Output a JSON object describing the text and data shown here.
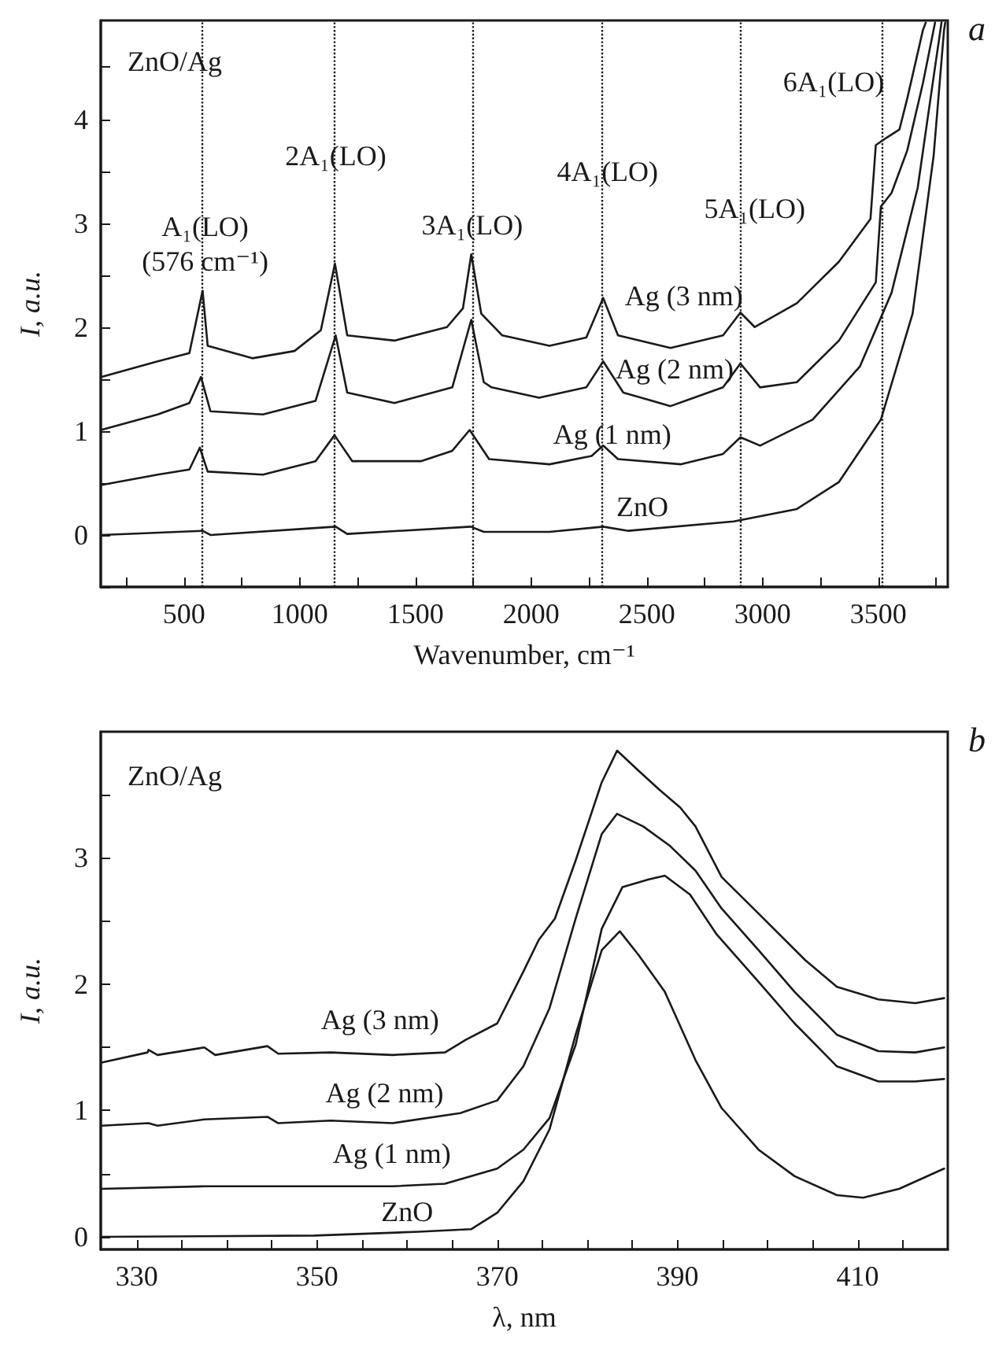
{
  "chart_data": [
    {
      "type": "line",
      "title": "ZnO/Ag",
      "xlabel": "Wavenumber, cm⁻¹",
      "ylabel": "I, a.u.",
      "xlim": [
        140,
        3800
      ],
      "ylim": [
        -0.5,
        4.95
      ],
      "xticks": [
        {
          "value": 250,
          "label": null
        },
        500,
        {
          "value": 750,
          "label": null
        },
        1000,
        {
          "value": 1250,
          "label": null
        },
        1500,
        {
          "value": 1750,
          "label": null
        },
        2000,
        {
          "value": 2250,
          "label": null
        },
        2500,
        {
          "value": 2750,
          "label": null
        },
        3000,
        {
          "value": 3250,
          "label": null
        },
        3500,
        {
          "value": 3750,
          "label": null
        }
      ],
      "yticks": [
        {
          "value": -0.5,
          "label": null
        },
        0,
        {
          "value": 0.5,
          "label": null
        },
        1,
        {
          "value": 1.5,
          "label": null
        },
        2,
        {
          "value": 2.5,
          "label": null
        },
        3,
        {
          "value": 3.5,
          "label": null
        },
        4,
        {
          "value": 4.5,
          "label": null
        }
      ],
      "grid": false,
      "legend": false,
      "marker": "none",
      "line_style": "solid",
      "series": [
        {
          "name": "Ag (3 nm)",
          "color": "#1a1a1a",
          "x": [
            141,
            386,
            523,
            580,
            602,
            795,
            977,
            1091,
            1152,
            1205,
            1409,
            1636,
            1705,
            1741,
            1784,
            1875,
            2079,
            2238,
            2311,
            2375,
            2602,
            2829,
            2904,
            2966,
            3148,
            3330,
            3466,
            3489,
            3534,
            3591,
            3625,
            3693,
            3705
          ],
          "values": [
            1.52,
            1.67,
            1.75,
            2.35,
            1.82,
            1.7,
            1.77,
            1.97,
            2.61,
            1.92,
            1.87,
            2.0,
            2.18,
            2.7,
            2.13,
            1.92,
            1.82,
            1.9,
            2.28,
            1.92,
            1.8,
            1.92,
            2.14,
            2.0,
            2.23,
            2.63,
            3.04,
            3.75,
            3.82,
            3.9,
            4.2,
            4.86,
            4.93
          ]
        },
        {
          "name": "Ag (2 nm)",
          "color": "#1a1a1a",
          "x": [
            141,
            386,
            523,
            573,
            614,
            841,
            1068,
            1155,
            1205,
            1409,
            1659,
            1741,
            1795,
            1829,
            2034,
            2238,
            2311,
            2398,
            2602,
            2829,
            2904,
            2989,
            3148,
            3330,
            3489,
            3511,
            3557,
            3625,
            3693,
            3745
          ],
          "values": [
            1.01,
            1.16,
            1.27,
            1.52,
            1.19,
            1.16,
            1.29,
            1.92,
            1.37,
            1.27,
            1.42,
            2.07,
            1.47,
            1.42,
            1.32,
            1.42,
            1.67,
            1.37,
            1.24,
            1.42,
            1.65,
            1.42,
            1.47,
            1.87,
            2.43,
            3.16,
            3.29,
            3.7,
            4.35,
            4.93
          ]
        },
        {
          "name": "Ag (1 nm)",
          "color": "#1a1a1a",
          "x": [
            141,
            386,
            523,
            568,
            602,
            841,
            1068,
            1150,
            1227,
            1523,
            1659,
            1734,
            1818,
            2079,
            2261,
            2311,
            2375,
            2648,
            2829,
            2904,
            2989,
            3216,
            3420,
            3557,
            3670,
            3739,
            3773
          ],
          "values": [
            0.48,
            0.58,
            0.63,
            0.84,
            0.61,
            0.58,
            0.71,
            0.96,
            0.71,
            0.71,
            0.81,
            1.01,
            0.73,
            0.68,
            0.76,
            0.86,
            0.73,
            0.68,
            0.78,
            0.94,
            0.86,
            1.11,
            1.62,
            2.33,
            3.34,
            4.41,
            4.93
          ]
        },
        {
          "name": "ZnO",
          "color": "#1a1a1a",
          "x": [
            141,
            580,
            614,
            1155,
            1205,
            1739,
            1795,
            2079,
            2311,
            2420,
            2875,
            3148,
            3330,
            3511,
            3648,
            3739,
            3784,
            3789
          ],
          "values": [
            0.0,
            0.04,
            0.0,
            0.08,
            0.01,
            0.08,
            0.03,
            0.03,
            0.08,
            0.04,
            0.13,
            0.25,
            0.51,
            1.11,
            2.13,
            3.65,
            4.86,
            4.93
          ]
        }
      ],
      "ref_lines": [
        {
          "axis": "x",
          "value": 576,
          "color": "#1a1a1a",
          "line_style": "dotted",
          "label": "A₁(LO)\n(576 cm⁻¹)"
        },
        {
          "axis": "x",
          "value": 1150,
          "color": "#1a1a1a",
          "line_style": "dotted",
          "label": "2A₁(LO)"
        },
        {
          "axis": "x",
          "value": 1745,
          "color": "#1a1a1a",
          "line_style": "dotted",
          "label": "3A₁(LO)"
        },
        {
          "axis": "x",
          "value": 2307,
          "color": "#1a1a1a",
          "line_style": "dotted",
          "label": "4A₁(LO)"
        },
        {
          "axis": "x",
          "value": 2904,
          "color": "#1a1a1a",
          "line_style": "dotted",
          "label": "5A₁(LO)"
        },
        {
          "axis": "x",
          "value": 3516,
          "color": "#1a1a1a",
          "line_style": "dotted",
          "label": "6A₁(LO)"
        }
      ],
      "annotations": [
        "a"
      ]
    },
    {
      "type": "line",
      "title": "ZnO/Ag",
      "xlabel": "λ, nm",
      "ylabel": "I, a.u.",
      "xlim": [
        326,
        420
      ],
      "ylim": [
        -0.1,
        4
      ],
      "xticks": [
        330,
        {
          "value": 335,
          "label": null
        },
        {
          "value": 340,
          "label": null
        },
        {
          "value": 345,
          "label": null
        },
        350,
        {
          "value": 355,
          "label": null
        },
        {
          "value": 360,
          "label": null
        },
        {
          "value": 365,
          "label": null
        },
        370,
        {
          "value": 375,
          "label": null
        },
        {
          "value": 380,
          "label": null
        },
        {
          "value": 385,
          "label": null
        },
        390,
        {
          "value": 395,
          "label": null
        },
        {
          "value": 400,
          "label": null
        },
        {
          "value": 405,
          "label": null
        },
        410,
        {
          "value": 415,
          "label": null
        }
      ],
      "yticks": [
        0,
        {
          "value": 0.5,
          "label": null
        },
        1,
        {
          "value": 1.5,
          "label": null
        },
        2,
        {
          "value": 2.5,
          "label": null
        },
        3,
        {
          "value": 3.5,
          "label": null
        }
      ],
      "grid": false,
      "legend": false,
      "marker": "none",
      "line_style": "solid",
      "series": [
        {
          "name": "Ag (3 nm)",
          "color": "#1a1a1a",
          "x": [
            326.1,
            331.2,
            331.3,
            332.3,
            337.5,
            338.7,
            344.5,
            345.7,
            351.5,
            358.4,
            364.2,
            366.5,
            370,
            372.9,
            374.6,
            376.4,
            378.7,
            381.6,
            383.3,
            385.7,
            388.0,
            390.3,
            392.0,
            394.9,
            399,
            404.2,
            407.7,
            412.3,
            416.4,
            419.6
          ],
          "values": [
            1.38,
            1.46,
            1.48,
            1.44,
            1.5,
            1.44,
            1.51,
            1.45,
            1.46,
            1.44,
            1.46,
            1.56,
            1.69,
            2.1,
            2.35,
            2.52,
            2.98,
            3.6,
            3.85,
            3.69,
            3.54,
            3.4,
            3.25,
            2.85,
            2.56,
            2.19,
            1.98,
            1.88,
            1.85,
            1.89
          ]
        },
        {
          "name": "Ag (2 nm)",
          "color": "#1a1a1a",
          "x": [
            326.1,
            331.3,
            332.3,
            337.5,
            344.5,
            345.7,
            351.5,
            358.4,
            365.9,
            370,
            372.9,
            375.8,
            378.7,
            381.6,
            383.3,
            386.2,
            389.1,
            392.0,
            394.9,
            399,
            403,
            407.7,
            412.3,
            416.4,
            419.6
          ],
          "values": [
            0.88,
            0.9,
            0.88,
            0.93,
            0.95,
            0.9,
            0.92,
            0.9,
            0.98,
            1.08,
            1.35,
            1.81,
            2.52,
            3.19,
            3.35,
            3.25,
            3.1,
            2.9,
            2.6,
            2.27,
            1.94,
            1.6,
            1.47,
            1.46,
            1.5
          ]
        },
        {
          "name": "Ag (1 nm)",
          "color": "#1a1a1a",
          "x": [
            326.1,
            337.5,
            344.5,
            358.4,
            364.2,
            370,
            372.9,
            375.8,
            378.7,
            381.6,
            383.9,
            386.8,
            388.6,
            391.4,
            394.3,
            399,
            403,
            407.7,
            412.3,
            416.4,
            419.6
          ],
          "values": [
            0.38,
            0.4,
            0.4,
            0.4,
            0.42,
            0.54,
            0.69,
            0.94,
            1.52,
            2.44,
            2.77,
            2.83,
            2.86,
            2.71,
            2.4,
            2.02,
            1.69,
            1.35,
            1.23,
            1.23,
            1.25
          ]
        },
        {
          "name": "ZnO",
          "color": "#1a1a1a",
          "x": [
            326.1,
            349.7,
            361.3,
            367.1,
            370,
            372.9,
            375.8,
            378.7,
            381.6,
            383.6,
            385.7,
            388.6,
            392,
            394.9,
            399,
            403,
            407.7,
            410.6,
            414.6,
            419.6
          ],
          "values": [
            0.0,
            0.01,
            0.04,
            0.06,
            0.19,
            0.44,
            0.85,
            1.6,
            2.27,
            2.42,
            2.23,
            1.94,
            1.4,
            1.02,
            0.69,
            0.48,
            0.33,
            0.31,
            0.38,
            0.54
          ]
        }
      ],
      "annotations": [
        "b"
      ]
    }
  ]
}
